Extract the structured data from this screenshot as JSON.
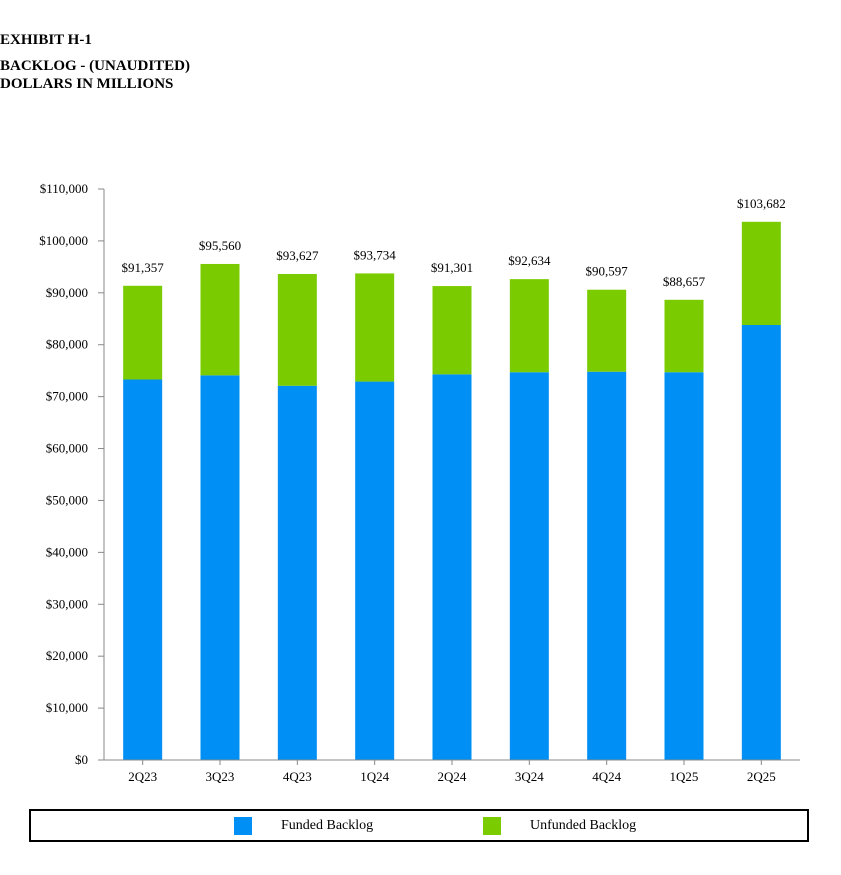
{
  "header": {
    "exhibit": "EXHIBIT H-1",
    "title": "BACKLOG - (UNAUDITED)",
    "subtitle": "DOLLARS IN MILLIONS"
  },
  "colors": {
    "funded": "#008ff5",
    "unfunded": "#7acc00",
    "axis": "#888888"
  },
  "legend": {
    "funded_label": "Funded Backlog",
    "unfunded_label": "Unfunded Backlog"
  },
  "chart_data": {
    "type": "bar",
    "stacked": true,
    "title": "BACKLOG - (UNAUDITED)",
    "subtitle": "DOLLARS IN MILLIONS",
    "categories": [
      "2Q23",
      "3Q23",
      "4Q23",
      "1Q24",
      "2Q24",
      "3Q24",
      "4Q24",
      "1Q25",
      "2Q25"
    ],
    "series": [
      {
        "name": "Funded Backlog",
        "values": [
          73300,
          74100,
          72100,
          72900,
          74300,
          74700,
          74800,
          74700,
          83800
        ]
      },
      {
        "name": "Unfunded Backlog",
        "values": [
          18057,
          21460,
          21527,
          20834,
          17001,
          17934,
          15797,
          13957,
          19882
        ]
      }
    ],
    "totals": [
      91357,
      95560,
      93627,
      93734,
      91301,
      92634,
      90597,
      88657,
      103682
    ],
    "total_labels": [
      "$91,357",
      "$95,560",
      "$93,627",
      "$93,734",
      "$91,301",
      "$92,634",
      "$90,597",
      "$88,657",
      "$103,682"
    ],
    "y_ticks": [
      0,
      10000,
      20000,
      30000,
      40000,
      50000,
      60000,
      70000,
      80000,
      90000,
      100000,
      110000
    ],
    "y_tick_labels": [
      "$0",
      "$10,000",
      "$20,000",
      "$30,000",
      "$40,000",
      "$50,000",
      "$60,000",
      "$70,000",
      "$80,000",
      "$90,000",
      "$100,000",
      "$110,000"
    ],
    "ylim": [
      0,
      110000
    ],
    "xlabel": "",
    "ylabel": "",
    "grid": false,
    "legend_position": "bottom"
  }
}
